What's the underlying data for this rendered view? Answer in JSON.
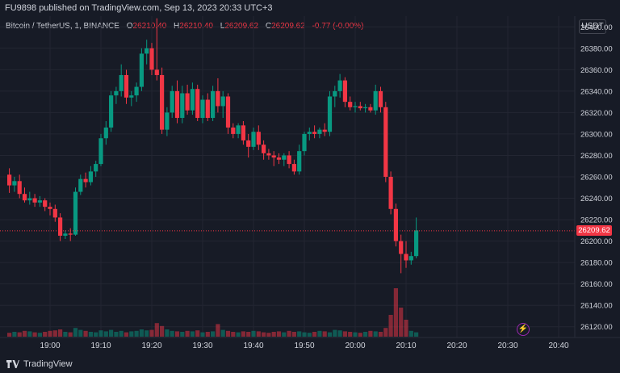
{
  "header": {
    "publish_line": "FU9898 published on TradingView.com, Sep 13, 2023 20:33 UTC+3"
  },
  "legend": {
    "symbol": "Bitcoin / TetherUS, 1, BINANCE",
    "o_label": "O",
    "o_value": "26210.40",
    "h_label": "H",
    "h_value": "26210.40",
    "l_label": "L",
    "l_value": "26209.62",
    "c_label": "C",
    "c_value": "26209.62",
    "change": "-0.77 (-0.00%)"
  },
  "currency_button": "USDT",
  "last_price": "26209.62",
  "footer": {
    "brand": "TradingView"
  },
  "colors": {
    "up": "#089981",
    "down": "#f23645",
    "bg": "#171b26",
    "grid": "#232632"
  },
  "chart_data": {
    "type": "candlestick",
    "ylim": [
      26110,
      26410
    ],
    "y_ticks": [
      "26400.00",
      "26380.00",
      "26360.00",
      "26340.00",
      "26320.00",
      "26300.00",
      "26280.00",
      "26260.00",
      "26240.00",
      "26220.00",
      "26200.00",
      "26180.00",
      "26160.00",
      "26140.00",
      "26120.00"
    ],
    "y_tick_values": [
      26400,
      26380,
      26360,
      26340,
      26320,
      26300,
      26280,
      26260,
      26240,
      26220,
      26200,
      26180,
      26160,
      26140,
      26120
    ],
    "x_ticks": [
      "19:00",
      "19:10",
      "19:20",
      "19:30",
      "19:40",
      "19:50",
      "20:00",
      "20:10",
      "20:20",
      "20:30",
      "20:40"
    ],
    "x_tick_minutes": [
      0,
      10,
      20,
      30,
      40,
      50,
      60,
      70,
      80,
      90,
      100
    ],
    "start_minute": -8,
    "candles": [
      [
        26262,
        26268,
        26245,
        26252
      ],
      [
        26252,
        26260,
        26246,
        26256
      ],
      [
        26256,
        26262,
        26240,
        26244
      ],
      [
        26244,
        26250,
        26236,
        26238
      ],
      [
        26238,
        26246,
        26234,
        26240
      ],
      [
        26240,
        26244,
        26232,
        26236
      ],
      [
        26236,
        26242,
        26232,
        26238
      ],
      [
        26238,
        26240,
        26228,
        26232
      ],
      [
        26232,
        26236,
        26224,
        26230
      ],
      [
        26230,
        26234,
        26218,
        26222
      ],
      [
        26222,
        26226,
        26200,
        26205
      ],
      [
        26205,
        26210,
        26202,
        26207
      ],
      [
        26207,
        26212,
        26200,
        26206
      ],
      [
        26206,
        26250,
        26205,
        26246
      ],
      [
        26246,
        26262,
        26243,
        26258
      ],
      [
        26258,
        26264,
        26250,
        26255
      ],
      [
        26255,
        26270,
        26252,
        26265
      ],
      [
        26265,
        26275,
        26260,
        26272
      ],
      [
        26272,
        26300,
        26270,
        26296
      ],
      [
        26296,
        26312,
        26290,
        26306
      ],
      [
        26306,
        26340,
        26302,
        26336
      ],
      [
        26336,
        26344,
        26328,
        26340
      ],
      [
        26340,
        26365,
        26335,
        26355
      ],
      [
        26355,
        26360,
        26328,
        26334
      ],
      [
        26334,
        26340,
        26326,
        26336
      ],
      [
        26336,
        26348,
        26330,
        26344
      ],
      [
        26344,
        26380,
        26340,
        26375
      ],
      [
        26375,
        26388,
        26365,
        26380
      ],
      [
        26380,
        26385,
        26355,
        26360
      ],
      [
        26360,
        26408,
        26350,
        26355
      ],
      [
        26355,
        26362,
        26300,
        26304
      ],
      [
        26304,
        26325,
        26298,
        26320
      ],
      [
        26320,
        26345,
        26315,
        26340
      ],
      [
        26340,
        26350,
        26310,
        26315
      ],
      [
        26315,
        26345,
        26310,
        26338
      ],
      [
        26338,
        26346,
        26318,
        26322
      ],
      [
        26322,
        26348,
        26318,
        26342
      ],
      [
        26342,
        26346,
        26312,
        26315
      ],
      [
        26315,
        26336,
        26310,
        26332
      ],
      [
        26332,
        26338,
        26312,
        26315
      ],
      [
        26315,
        26345,
        26312,
        26340
      ],
      [
        26340,
        26352,
        26320,
        26326
      ],
      [
        26326,
        26340,
        26315,
        26335
      ],
      [
        26335,
        26338,
        26300,
        26306
      ],
      [
        26306,
        26310,
        26296,
        26300
      ],
      [
        26300,
        26310,
        26296,
        26308
      ],
      [
        26308,
        26312,
        26290,
        26294
      ],
      [
        26294,
        26300,
        26278,
        26288
      ],
      [
        26288,
        26306,
        26285,
        26302
      ],
      [
        26302,
        26308,
        26285,
        26290
      ],
      [
        26290,
        26294,
        26276,
        26282
      ],
      [
        26282,
        26286,
        26276,
        26280
      ],
      [
        26280,
        26284,
        26270,
        26278
      ],
      [
        26278,
        26282,
        26272,
        26276
      ],
      [
        26276,
        26282,
        26270,
        26280
      ],
      [
        26280,
        26284,
        26268,
        26272
      ],
      [
        26272,
        26276,
        26262,
        26265
      ],
      [
        26265,
        26290,
        26262,
        26284
      ],
      [
        26284,
        26302,
        26280,
        26300
      ],
      [
        26300,
        26306,
        26294,
        26302
      ],
      [
        26302,
        26308,
        26296,
        26300
      ],
      [
        26300,
        26306,
        26296,
        26304
      ],
      [
        26304,
        26310,
        26298,
        26302
      ],
      [
        26302,
        26340,
        26298,
        26335
      ],
      [
        26335,
        26345,
        26325,
        26340
      ],
      [
        26340,
        26356,
        26334,
        26350
      ],
      [
        26350,
        26353,
        26325,
        26330
      ],
      [
        26330,
        26335,
        26322,
        26325
      ],
      [
        26325,
        26330,
        26320,
        26326
      ],
      [
        26326,
        26330,
        26322,
        26324
      ],
      [
        26324,
        26328,
        26320,
        26325
      ],
      [
        26325,
        26328,
        26320,
        26322
      ],
      [
        26322,
        26346,
        26318,
        26340
      ],
      [
        26340,
        26344,
        26320,
        26325
      ],
      [
        26325,
        26330,
        26255,
        26260
      ],
      [
        26260,
        26265,
        26225,
        26230
      ],
      [
        26230,
        26235,
        26195,
        26200
      ],
      [
        26200,
        26206,
        26170,
        26188
      ],
      [
        26188,
        26200,
        26175,
        26182
      ],
      [
        26182,
        26190,
        26178,
        26186
      ],
      [
        26186,
        26222,
        26184,
        26210
      ]
    ],
    "volume_max": 100,
    "volumes": [
      8,
      10,
      9,
      12,
      11,
      9,
      8,
      10,
      12,
      13,
      15,
      10,
      9,
      18,
      14,
      12,
      10,
      9,
      13,
      11,
      14,
      10,
      12,
      9,
      11,
      12,
      15,
      13,
      14,
      28,
      22,
      15,
      12,
      11,
      10,
      12,
      11,
      13,
      9,
      10,
      11,
      26,
      14,
      12,
      10,
      9,
      11,
      10,
      12,
      11,
      9,
      8,
      10,
      11,
      9,
      12,
      10,
      11,
      9,
      8,
      10,
      12,
      11,
      9,
      14,
      13,
      11,
      10,
      9,
      8,
      10,
      12,
      11,
      10,
      18,
      45,
      100,
      60,
      35,
      12,
      9
    ]
  }
}
